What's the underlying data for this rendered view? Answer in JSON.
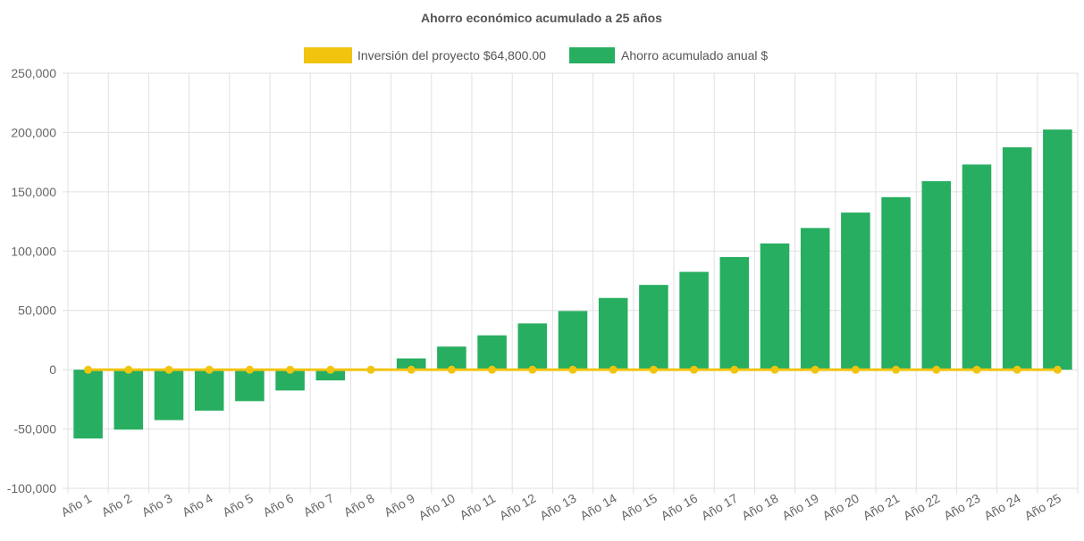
{
  "chart_data": {
    "type": "bar",
    "title": "Ahorro económico acumulado a 25 años",
    "xlabel": "",
    "ylabel": "",
    "categories": [
      "Año 1",
      "Año 2",
      "Año 3",
      "Año 4",
      "Año 5",
      "Año 6",
      "Año 7",
      "Año 8",
      "Año 9",
      "Año 10",
      "Año 11",
      "Año 12",
      "Año 13",
      "Año 14",
      "Año 15",
      "Año 16",
      "Año 17",
      "Año 18",
      "Año 19",
      "Año 20",
      "Año 21",
      "Año 22",
      "Año 23",
      "Año 24",
      "Año 25"
    ],
    "series": [
      {
        "name": "Inversión del proyecto $64,800.00",
        "type": "line",
        "color": "#f1c40f",
        "values": [
          0,
          0,
          0,
          0,
          0,
          0,
          0,
          0,
          0,
          0,
          0,
          0,
          0,
          0,
          0,
          0,
          0,
          0,
          0,
          0,
          0,
          0,
          0,
          0,
          0
        ]
      },
      {
        "name": "Ahorro acumulado anual $",
        "type": "bar",
        "color": "#27ae60",
        "values": [
          -58000,
          -50500,
          -42500,
          -34500,
          -26500,
          -17500,
          -9000,
          0,
          9500,
          19500,
          29000,
          39000,
          49500,
          60500,
          71500,
          82500,
          95000,
          106500,
          119500,
          132500,
          145500,
          159000,
          173000,
          187500,
          202500
        ]
      }
    ],
    "ylim": [
      -100000,
      250000
    ],
    "yticks": [
      250000,
      200000,
      150000,
      100000,
      50000,
      0,
      -50000,
      -100000
    ],
    "ytick_labels": [
      "250,000",
      "200,000",
      "150,000",
      "100,000",
      "50,000",
      "0",
      "-50,000",
      "-100,000"
    ],
    "grid": true,
    "legend_position": "top-center"
  }
}
